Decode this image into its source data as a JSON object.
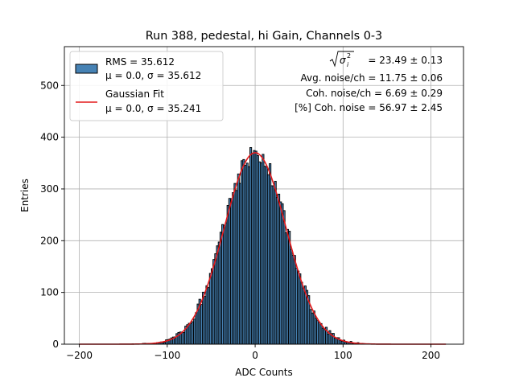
{
  "chart_data": {
    "type": "bar",
    "title": "Run 388, pedestal, hi Gain, Channels 0-3",
    "xlabel": "ADC Counts",
    "ylabel": "Entries",
    "xlim": [
      -217,
      237
    ],
    "ylim": [
      0,
      575
    ],
    "xticks": [
      -200,
      -100,
      0,
      100,
      200
    ],
    "yticks": [
      0,
      100,
      200,
      300,
      400,
      500
    ],
    "xtick_labels": [
      "−200",
      "−100",
      "0",
      "100",
      "200"
    ],
    "ytick_labels": [
      "0",
      "100",
      "200",
      "300",
      "400",
      "500"
    ],
    "grid": true,
    "legend_position": "top-left",
    "histogram": {
      "name_line1": "RMS = 35.612",
      "name_line2": "μ = 0.0, σ = 35.612",
      "bin_width": 2,
      "mean": 0.0,
      "sigma": 35.612,
      "peak_entries": 370,
      "x_range": [
        -200,
        217
      ],
      "color": "#4682b4",
      "edgecolor": "#000000"
    },
    "fit": {
      "name_line1": "Gaussian Fit",
      "name_line2": "μ = 0.0, σ = 35.241",
      "mean": 0.0,
      "sigma": 35.241,
      "amplitude": 370,
      "x_range": [
        -200,
        217
      ],
      "color": "#e41a1c"
    },
    "annotations": {
      "sigma_line_value": "= 23.49 ± 0.13",
      "avg_noise": "Avg. noise/ch = 11.75 ± 0.06",
      "coh_noise": "Coh. noise/ch = 6.69 ± 0.29",
      "pct_coh_noise": "[%] Coh. noise = 56.97 ± 2.45"
    }
  }
}
